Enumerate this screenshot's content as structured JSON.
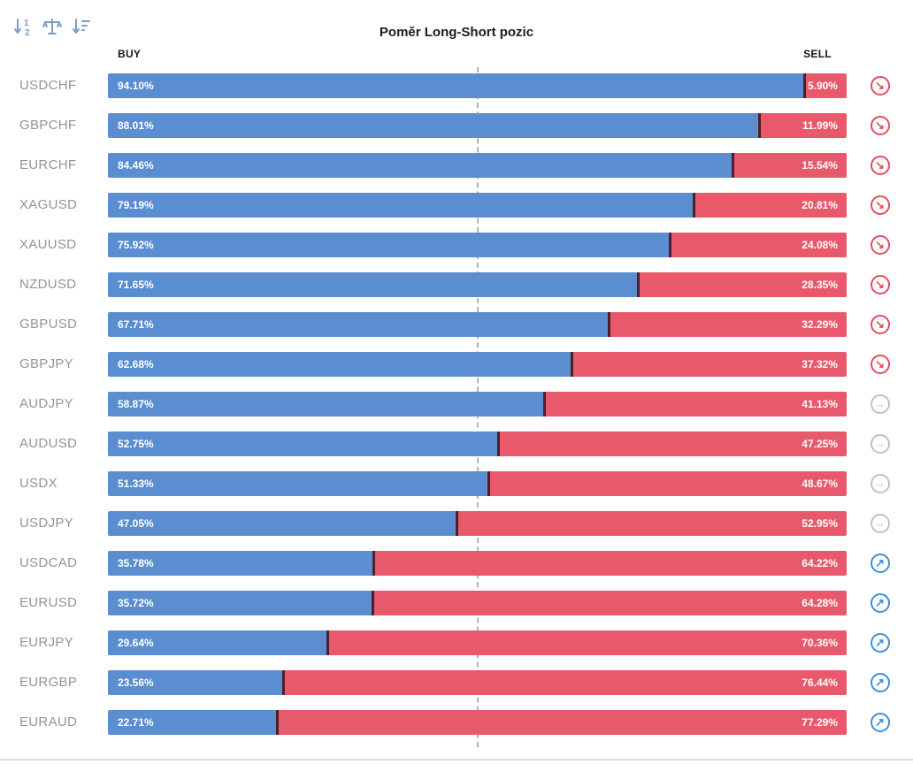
{
  "title": "Poměr Long-Short pozic",
  "columns": {
    "buy": "BUY",
    "sell": "SELL"
  },
  "toolbar": {
    "icons": [
      "sort-numeric-icon",
      "balance-sort-icon",
      "sort-amount-icon"
    ],
    "icon_color": "#7d9cc0"
  },
  "colors": {
    "buy": "#5b8dd1",
    "sell": "#e8596c",
    "divider": "#4d2029",
    "pair_label": "#949494",
    "center_line": "#b4b4b4"
  },
  "signals": {
    "down": {
      "arrow": "↘",
      "color": "#e84b5e"
    },
    "flat": {
      "arrow": "→",
      "color": "#b6c3d1"
    },
    "up": {
      "arrow": "↗",
      "color": "#3c8fdb"
    }
  },
  "rows": [
    {
      "pair": "USDCHF",
      "buy": 94.1,
      "sell": 5.9,
      "buy_label": "94.10%",
      "sell_label": "5.90%",
      "signal": "down"
    },
    {
      "pair": "GBPCHF",
      "buy": 88.01,
      "sell": 11.99,
      "buy_label": "88.01%",
      "sell_label": "11.99%",
      "signal": "down"
    },
    {
      "pair": "EURCHF",
      "buy": 84.46,
      "sell": 15.54,
      "buy_label": "84.46%",
      "sell_label": "15.54%",
      "signal": "down"
    },
    {
      "pair": "XAGUSD",
      "buy": 79.19,
      "sell": 20.81,
      "buy_label": "79.19%",
      "sell_label": "20.81%",
      "signal": "down"
    },
    {
      "pair": "XAUUSD",
      "buy": 75.92,
      "sell": 24.08,
      "buy_label": "75.92%",
      "sell_label": "24.08%",
      "signal": "down"
    },
    {
      "pair": "NZDUSD",
      "buy": 71.65,
      "sell": 28.35,
      "buy_label": "71.65%",
      "sell_label": "28.35%",
      "signal": "down"
    },
    {
      "pair": "GBPUSD",
      "buy": 67.71,
      "sell": 32.29,
      "buy_label": "67.71%",
      "sell_label": "32.29%",
      "signal": "down"
    },
    {
      "pair": "GBPJPY",
      "buy": 62.68,
      "sell": 37.32,
      "buy_label": "62.68%",
      "sell_label": "37.32%",
      "signal": "down"
    },
    {
      "pair": "AUDJPY",
      "buy": 58.87,
      "sell": 41.13,
      "buy_label": "58.87%",
      "sell_label": "41.13%",
      "signal": "flat"
    },
    {
      "pair": "AUDUSD",
      "buy": 52.75,
      "sell": 47.25,
      "buy_label": "52.75%",
      "sell_label": "47.25%",
      "signal": "flat"
    },
    {
      "pair": "USDX",
      "buy": 51.33,
      "sell": 48.67,
      "buy_label": "51.33%",
      "sell_label": "48.67%",
      "signal": "flat"
    },
    {
      "pair": "USDJPY",
      "buy": 47.05,
      "sell": 52.95,
      "buy_label": "47.05%",
      "sell_label": "52.95%",
      "signal": "flat"
    },
    {
      "pair": "USDCAD",
      "buy": 35.78,
      "sell": 64.22,
      "buy_label": "35.78%",
      "sell_label": "64.22%",
      "signal": "up"
    },
    {
      "pair": "EURUSD",
      "buy": 35.72,
      "sell": 64.28,
      "buy_label": "35.72%",
      "sell_label": "64.28%",
      "signal": "up"
    },
    {
      "pair": "EURJPY",
      "buy": 29.64,
      "sell": 70.36,
      "buy_label": "29.64%",
      "sell_label": "70.36%",
      "signal": "up"
    },
    {
      "pair": "EURGBP",
      "buy": 23.56,
      "sell": 76.44,
      "buy_label": "23.56%",
      "sell_label": "76.44%",
      "signal": "up"
    },
    {
      "pair": "EURAUD",
      "buy": 22.71,
      "sell": 77.29,
      "buy_label": "22.71%",
      "sell_label": "77.29%",
      "signal": "up"
    }
  ],
  "chart_data": {
    "type": "bar",
    "orientation": "horizontal",
    "stacked": true,
    "title": "Poměr Long-Short pozic",
    "categories": [
      "USDCHF",
      "GBPCHF",
      "EURCHF",
      "XAGUSD",
      "XAUUSD",
      "NZDUSD",
      "GBPUSD",
      "GBPJPY",
      "AUDJPY",
      "AUDUSD",
      "USDX",
      "USDJPY",
      "USDCAD",
      "EURUSD",
      "EURJPY",
      "EURGBP",
      "EURAUD"
    ],
    "series": [
      {
        "name": "BUY",
        "color": "#5b8dd1",
        "values": [
          94.1,
          88.01,
          84.46,
          79.19,
          75.92,
          71.65,
          67.71,
          62.68,
          58.87,
          52.75,
          51.33,
          47.05,
          35.78,
          35.72,
          29.64,
          23.56,
          22.71
        ]
      },
      {
        "name": "SELL",
        "color": "#e8596c",
        "values": [
          5.9,
          11.99,
          15.54,
          20.81,
          24.08,
          28.35,
          32.29,
          37.32,
          41.13,
          47.25,
          48.67,
          52.95,
          64.22,
          64.28,
          70.36,
          76.44,
          77.29
        ]
      }
    ],
    "xlim": [
      0,
      100
    ],
    "center_reference_line": 50,
    "grid": false,
    "legend_position": "none",
    "value_labels": "inside-ends"
  }
}
